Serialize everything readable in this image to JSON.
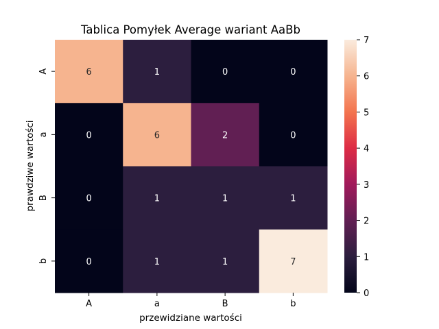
{
  "chart_data": {
    "type": "heatmap",
    "title": "Tablica Pomyłek Average wariant AaBb",
    "xlabel": "przewidziane wartości",
    "ylabel": "prawdziwe wartości",
    "x_categories": [
      "A",
      "a",
      "B",
      "b"
    ],
    "y_categories": [
      "A",
      "a",
      "B",
      "b"
    ],
    "values": [
      [
        6,
        1,
        0,
        0
      ],
      [
        0,
        6,
        2,
        0
      ],
      [
        0,
        1,
        1,
        1
      ],
      [
        0,
        1,
        1,
        7
      ]
    ],
    "colorbar": {
      "range": [
        0,
        7
      ],
      "ticks": [
        0,
        1,
        2,
        3,
        4,
        5,
        6,
        7
      ],
      "colormap": "rocket"
    }
  }
}
